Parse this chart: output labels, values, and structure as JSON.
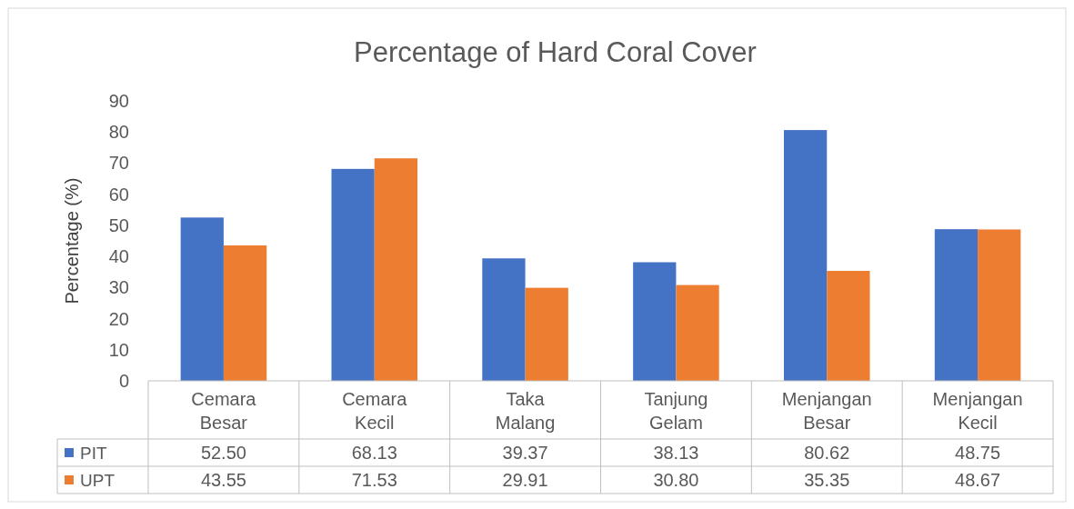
{
  "chart_data": {
    "type": "bar",
    "title": "Percentage of Hard Coral Cover",
    "ylabel": "Percentage (%)",
    "categories": [
      "Cemara Besar",
      "Cemara Kecil",
      "Taka Malang",
      "Tanjung Gelam",
      "Menjangan Besar",
      "Menjangan Kecil"
    ],
    "series": [
      {
        "name": "PIT",
        "color": "#4472c4",
        "values": [
          52.5,
          68.13,
          39.37,
          38.13,
          80.62,
          48.75
        ],
        "value_labels": [
          "52.50",
          "68.13",
          "39.37",
          "38.13",
          "80.62",
          "48.75"
        ]
      },
      {
        "name": "UPT",
        "color": "#ed7d31",
        "values": [
          43.55,
          71.53,
          29.91,
          30.8,
          35.35,
          48.67
        ],
        "value_labels": [
          "43.55",
          "71.53",
          "29.91",
          "30.80",
          "35.35",
          "48.67"
        ]
      }
    ],
    "ylim": [
      0,
      90
    ],
    "yticks": [
      0,
      10,
      20,
      30,
      40,
      50,
      60,
      70,
      80,
      90
    ],
    "grid": false,
    "legend": "bottom",
    "data_labels": true
  }
}
